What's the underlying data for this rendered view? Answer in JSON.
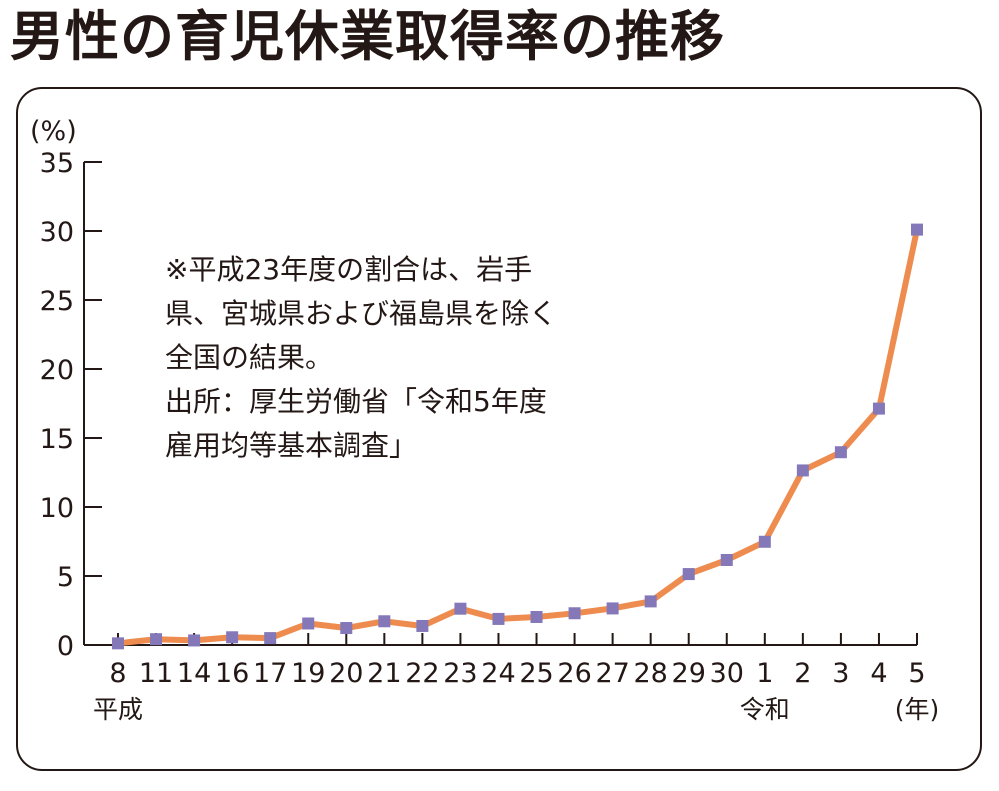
{
  "title": "男性の育児休業取得率の推移",
  "note": [
    "※平成23年度の割合は、岩手",
    "県、宮城県および福島県を除く",
    "全国の結果。",
    "出所：厚生労働省「令和5年度",
    "雇用均等基本調査」"
  ],
  "chart_data": {
    "type": "line",
    "title": "男性の育児休業取得率の推移",
    "xlabel": "(年)",
    "ylabel": "(%)",
    "ylim": [
      0,
      35
    ],
    "yticks": [
      0,
      5,
      10,
      15,
      20,
      25,
      30,
      35
    ],
    "categories": [
      "8",
      "11",
      "14",
      "16",
      "17",
      "19",
      "20",
      "21",
      "22",
      "23",
      "24",
      "25",
      "26",
      "27",
      "28",
      "29",
      "30",
      "1",
      "2",
      "3",
      "4",
      "5"
    ],
    "era_labels": [
      {
        "category_index": 0,
        "label": "平成"
      },
      {
        "category_index": 17,
        "label": "令和"
      }
    ],
    "series": [
      {
        "values": [
          0.12,
          0.42,
          0.33,
          0.56,
          0.5,
          1.56,
          1.23,
          1.72,
          1.38,
          2.63,
          1.89,
          2.03,
          2.3,
          2.65,
          3.16,
          5.14,
          6.16,
          7.48,
          12.65,
          13.97,
          17.13,
          30.1
        ]
      }
    ],
    "line_color": "#ee8c50",
    "marker_color": "#8478b8",
    "grid": false,
    "legend": "none"
  }
}
